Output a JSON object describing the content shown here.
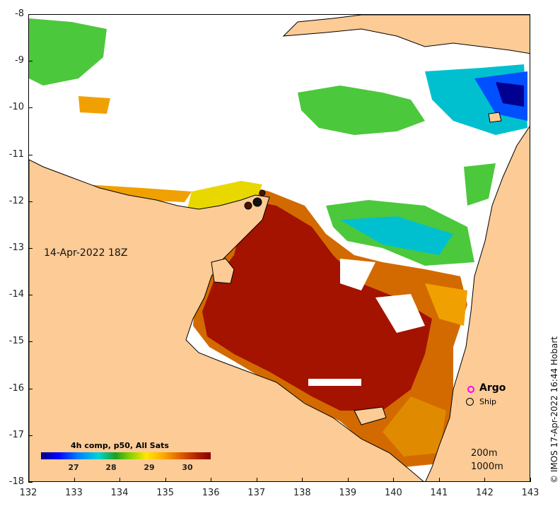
{
  "map": {
    "date": "14-Apr-2022 18Z",
    "x_ticks": [
      "132",
      "133",
      "134",
      "135",
      "136",
      "137",
      "138",
      "139",
      "140",
      "141",
      "142",
      "143"
    ],
    "y_ticks": [
      "-8",
      "-9",
      "-10",
      "-11",
      "-12",
      "-13",
      "-14",
      "-15",
      "-16",
      "-17",
      "-18"
    ],
    "colorbar": {
      "title": "4h comp, p50, All Sats",
      "ticks": [
        "27",
        "28",
        "29",
        "30"
      ]
    },
    "legend": {
      "argo": "Argo",
      "ship": "Ship"
    },
    "depth_labels": [
      "200m",
      "1000m"
    ],
    "credit": "© IMOS 17-Apr-2022 16:44 Hobart",
    "colors": {
      "land": "#fccb96",
      "warm": "#a11200",
      "hot_orange": "#d86a00",
      "mid_orange": "#f0a000",
      "yellow": "#e8d800",
      "green": "#4cc83c",
      "cyan": "#00c0d0",
      "blue": "#0050ff",
      "navy": "#000090",
      "argo_marker": "#ff00ff"
    }
  }
}
